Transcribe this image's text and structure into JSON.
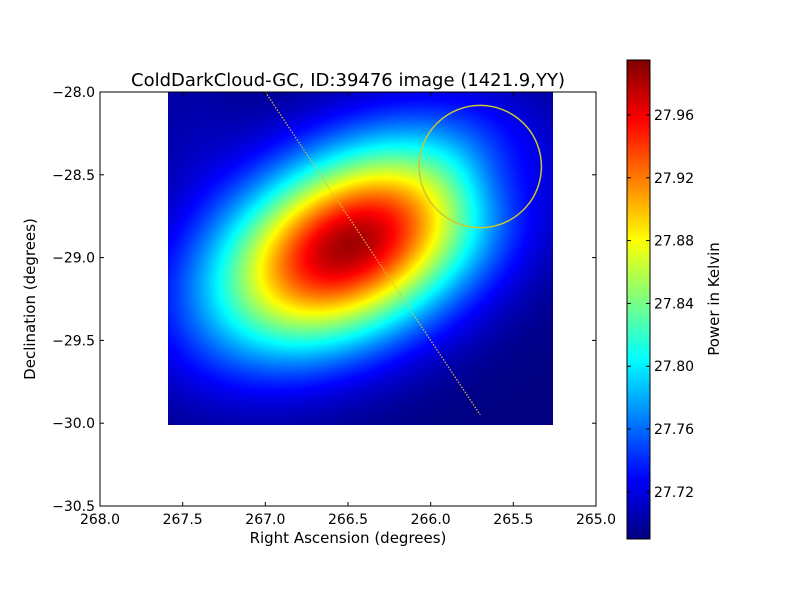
{
  "chart_data": {
    "type": "heatmap",
    "title": "ColdDarkCloud-GC, ID:39476 image (1421.9,YY)",
    "xlabel": "Right Ascension (degrees)",
    "ylabel": "Declination (degrees)",
    "xlim": [
      268.0,
      265.0
    ],
    "ylim": [
      -30.5,
      -28.0
    ],
    "x_ticks": [
      268.0,
      267.5,
      267.0,
      266.5,
      266.0,
      265.5,
      265.0
    ],
    "x_tick_labels": [
      "268.0",
      "267.5",
      "267.0",
      "266.5",
      "266.0",
      "265.5",
      "265.0"
    ],
    "y_ticks": [
      -28.0,
      -28.5,
      -29.0,
      -29.5,
      -30.0,
      -30.5
    ],
    "y_tick_labels": [
      "−28.0",
      "−28.5",
      "−29.0",
      "−29.5",
      "−30.0",
      "−30.5"
    ],
    "image_extent": {
      "ra": [
        267.6,
        265.27
      ],
      "dec": [
        -30.0,
        -28.0
      ]
    },
    "peak": {
      "ra": 266.5,
      "dec": -28.92,
      "value": 27.985
    },
    "background_value": 27.69,
    "colormap": "jet",
    "colorbar": {
      "label": "Power in Kelvin",
      "range": [
        27.69,
        27.995
      ],
      "ticks": [
        27.72,
        27.76,
        27.8,
        27.84,
        27.88,
        27.92,
        27.96
      ],
      "tick_labels": [
        "27.72",
        "27.76",
        "27.80",
        "27.84",
        "27.88",
        "27.92",
        "27.96"
      ]
    },
    "overlays": {
      "circle": {
        "ra": 265.7,
        "dec": -28.45,
        "radius_deg": 0.37,
        "color": "#c8c832"
      },
      "track": {
        "from": {
          "ra": 267.0,
          "dec": -28.0
        },
        "to": {
          "ra": 265.7,
          "dec": -29.95
        },
        "color": "#d8c040"
      }
    }
  }
}
